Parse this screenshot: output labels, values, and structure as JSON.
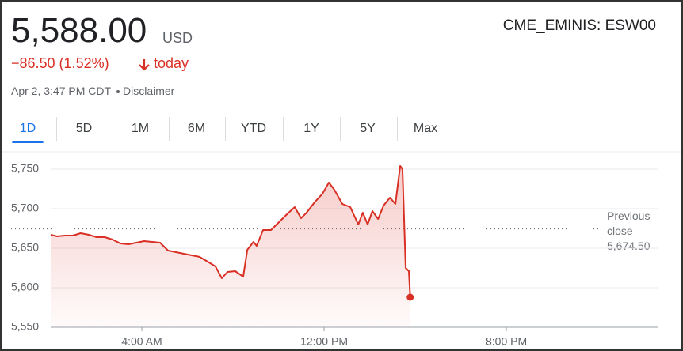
{
  "quote": {
    "price": "5,588.00",
    "currency": "USD",
    "change": "−86.50 (1.52%)",
    "change_suffix": "today",
    "timestamp": "Apr 2, 3:47 PM CDT",
    "disclaimer": "Disclaimer",
    "symbol": "CME_EMINIS: ESW00"
  },
  "tabs": {
    "items": [
      "1D",
      "5D",
      "1M",
      "6M",
      "YTD",
      "1Y",
      "5Y",
      "Max"
    ],
    "selected": 0
  },
  "chart_data": {
    "type": "line",
    "color": "#d93025",
    "grid": true,
    "x": [
      0,
      0.28,
      0.63,
      0.97,
      1.32,
      1.67,
      2.02,
      2.37,
      2.71,
      3.06,
      3.41,
      3.76,
      4.1,
      4.45,
      4.8,
      5.15,
      5.5,
      5.84,
      6.19,
      6.54,
      6.89,
      7.23,
      7.51,
      7.76,
      8.1,
      8.45,
      8.63,
      8.9,
      9.04,
      9.32,
      9.67,
      10.02,
      10.37,
      10.71,
      10.99,
      11.23,
      11.58,
      11.93,
      12.21,
      12.45,
      12.8,
      13.15,
      13.5,
      13.7,
      13.91,
      14.12,
      14.37,
      14.61,
      14.89,
      15.13,
      15.34,
      15.44,
      15.58,
      15.72,
      15.78
    ],
    "series": [
      {
        "name": "ESW00",
        "color": "#d93025",
        "values": [
          5667,
          5665,
          5666,
          5666,
          5669,
          5667,
          5664,
          5664,
          5661,
          5656,
          5655,
          5657,
          5659,
          5658,
          5657,
          5647,
          5645,
          5643,
          5641,
          5639,
          5633,
          5627,
          5612,
          5620,
          5621,
          5614,
          5648,
          5658,
          5653,
          5673,
          5673,
          5683,
          5693,
          5702,
          5688,
          5695,
          5708,
          5719,
          5733,
          5724,
          5706,
          5702,
          5680,
          5695,
          5680,
          5697,
          5687,
          5704,
          5714,
          5706,
          5754,
          5750,
          5625,
          5621,
          5588
        ]
      }
    ],
    "xlim": [
      0,
      26.64
    ],
    "ylim": [
      5550,
      5760
    ],
    "xticks": [
      {
        "value": 4,
        "label": "4:00 AM"
      },
      {
        "value": 12,
        "label": "12:00 PM"
      },
      {
        "value": 20,
        "label": "8:00 PM"
      }
    ],
    "yticks": [
      {
        "value": 5550,
        "label": "5,550"
      },
      {
        "value": 5600,
        "label": "5,600"
      },
      {
        "value": 5650,
        "label": "5,650"
      },
      {
        "value": 5700,
        "label": "5,700"
      },
      {
        "value": 5750,
        "label": "5,750"
      }
    ],
    "previous_close": {
      "label": "Previous close",
      "value": 5674.5,
      "value_label": "5,674.50"
    }
  }
}
